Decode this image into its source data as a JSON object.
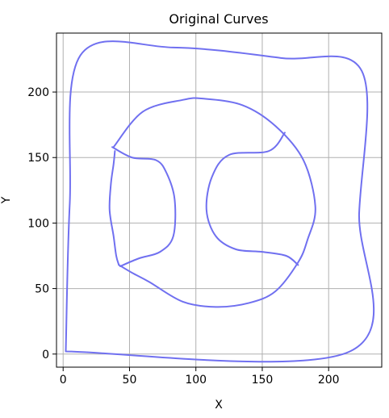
{
  "chart_data": {
    "type": "line",
    "title": "Original Curves",
    "xlabel": "X",
    "ylabel": "Y",
    "xlim": [
      -5,
      240
    ],
    "ylim": [
      -10,
      245
    ],
    "xticks": [
      0,
      50,
      100,
      150,
      200
    ],
    "yticks": [
      0,
      50,
      100,
      150,
      200
    ],
    "grid": true,
    "series": [
      {
        "name": "",
        "color": "#7070f0",
        "points": [
          [
            2,
            2
          ],
          [
            216,
            2
          ],
          [
            223,
            108
          ],
          [
            225,
            216
          ],
          [
            164,
            226
          ],
          [
            83,
            234
          ],
          [
            13,
            228
          ],
          [
            5,
            115
          ],
          [
            2,
            2
          ]
        ]
      },
      {
        "name": "",
        "color": "#7070f0",
        "points": [
          [
            42,
            68
          ],
          [
            40,
            75
          ],
          [
            38,
            90
          ],
          [
            35,
            110
          ],
          [
            36,
            130
          ],
          [
            38,
            145
          ],
          [
            39,
            155
          ]
        ]
      },
      {
        "name": "",
        "color": "#7070f0",
        "points": [
          [
            38,
            158
          ],
          [
            60,
            185
          ],
          [
            90,
            194
          ],
          [
            105,
            195
          ],
          [
            135,
            190
          ],
          [
            160,
            174
          ],
          [
            181,
            148
          ],
          [
            190,
            112
          ],
          [
            184,
            87
          ],
          [
            177,
            70
          ],
          [
            160,
            48
          ],
          [
            140,
            39
          ],
          [
            115,
            36
          ],
          [
            90,
            40
          ],
          [
            65,
            55
          ],
          [
            52,
            62
          ],
          [
            42,
            68
          ]
        ]
      },
      {
        "name": "",
        "color": "#7070f0",
        "points": [
          [
            37,
            158
          ],
          [
            52,
            150
          ],
          [
            70,
            148
          ],
          [
            78,
            138
          ],
          [
            84,
            118
          ],
          [
            83,
            90
          ],
          [
            73,
            78
          ],
          [
            57,
            73
          ],
          [
            43,
            67
          ]
        ]
      },
      {
        "name": "",
        "color": "#7070f0",
        "points": [
          [
            167,
            169
          ],
          [
            155,
            155
          ],
          [
            125,
            152
          ],
          [
            112,
            135
          ],
          [
            108,
            110
          ],
          [
            115,
            90
          ],
          [
            130,
            80
          ],
          [
            150,
            78
          ],
          [
            168,
            75
          ],
          [
            177,
            68
          ]
        ]
      }
    ]
  }
}
